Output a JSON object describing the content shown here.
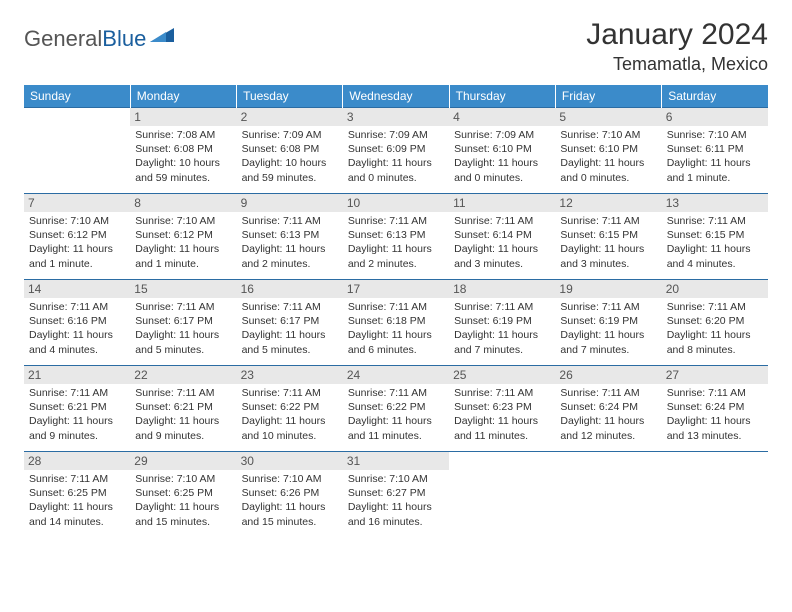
{
  "logo": {
    "part1": "General",
    "part2": "Blue"
  },
  "title": "January 2024",
  "location": "Temamatla, Mexico",
  "colors": {
    "header_bg": "#3b8bca",
    "header_text": "#ffffff",
    "row_border": "#2b6ca3",
    "daynum_bg": "#e8e8e8",
    "daynum_text": "#555555",
    "body_text": "#333333",
    "logo_blue": "#1b5f9e",
    "logo_gray": "#555555"
  },
  "weekdays": [
    "Sunday",
    "Monday",
    "Tuesday",
    "Wednesday",
    "Thursday",
    "Friday",
    "Saturday"
  ],
  "weeks": [
    [
      {
        "n": "",
        "sr": "",
        "ss": "",
        "dl": ""
      },
      {
        "n": "1",
        "sr": "Sunrise: 7:08 AM",
        "ss": "Sunset: 6:08 PM",
        "dl": "Daylight: 10 hours and 59 minutes."
      },
      {
        "n": "2",
        "sr": "Sunrise: 7:09 AM",
        "ss": "Sunset: 6:08 PM",
        "dl": "Daylight: 10 hours and 59 minutes."
      },
      {
        "n": "3",
        "sr": "Sunrise: 7:09 AM",
        "ss": "Sunset: 6:09 PM",
        "dl": "Daylight: 11 hours and 0 minutes."
      },
      {
        "n": "4",
        "sr": "Sunrise: 7:09 AM",
        "ss": "Sunset: 6:10 PM",
        "dl": "Daylight: 11 hours and 0 minutes."
      },
      {
        "n": "5",
        "sr": "Sunrise: 7:10 AM",
        "ss": "Sunset: 6:10 PM",
        "dl": "Daylight: 11 hours and 0 minutes."
      },
      {
        "n": "6",
        "sr": "Sunrise: 7:10 AM",
        "ss": "Sunset: 6:11 PM",
        "dl": "Daylight: 11 hours and 1 minute."
      }
    ],
    [
      {
        "n": "7",
        "sr": "Sunrise: 7:10 AM",
        "ss": "Sunset: 6:12 PM",
        "dl": "Daylight: 11 hours and 1 minute."
      },
      {
        "n": "8",
        "sr": "Sunrise: 7:10 AM",
        "ss": "Sunset: 6:12 PM",
        "dl": "Daylight: 11 hours and 1 minute."
      },
      {
        "n": "9",
        "sr": "Sunrise: 7:11 AM",
        "ss": "Sunset: 6:13 PM",
        "dl": "Daylight: 11 hours and 2 minutes."
      },
      {
        "n": "10",
        "sr": "Sunrise: 7:11 AM",
        "ss": "Sunset: 6:13 PM",
        "dl": "Daylight: 11 hours and 2 minutes."
      },
      {
        "n": "11",
        "sr": "Sunrise: 7:11 AM",
        "ss": "Sunset: 6:14 PM",
        "dl": "Daylight: 11 hours and 3 minutes."
      },
      {
        "n": "12",
        "sr": "Sunrise: 7:11 AM",
        "ss": "Sunset: 6:15 PM",
        "dl": "Daylight: 11 hours and 3 minutes."
      },
      {
        "n": "13",
        "sr": "Sunrise: 7:11 AM",
        "ss": "Sunset: 6:15 PM",
        "dl": "Daylight: 11 hours and 4 minutes."
      }
    ],
    [
      {
        "n": "14",
        "sr": "Sunrise: 7:11 AM",
        "ss": "Sunset: 6:16 PM",
        "dl": "Daylight: 11 hours and 4 minutes."
      },
      {
        "n": "15",
        "sr": "Sunrise: 7:11 AM",
        "ss": "Sunset: 6:17 PM",
        "dl": "Daylight: 11 hours and 5 minutes."
      },
      {
        "n": "16",
        "sr": "Sunrise: 7:11 AM",
        "ss": "Sunset: 6:17 PM",
        "dl": "Daylight: 11 hours and 5 minutes."
      },
      {
        "n": "17",
        "sr": "Sunrise: 7:11 AM",
        "ss": "Sunset: 6:18 PM",
        "dl": "Daylight: 11 hours and 6 minutes."
      },
      {
        "n": "18",
        "sr": "Sunrise: 7:11 AM",
        "ss": "Sunset: 6:19 PM",
        "dl": "Daylight: 11 hours and 7 minutes."
      },
      {
        "n": "19",
        "sr": "Sunrise: 7:11 AM",
        "ss": "Sunset: 6:19 PM",
        "dl": "Daylight: 11 hours and 7 minutes."
      },
      {
        "n": "20",
        "sr": "Sunrise: 7:11 AM",
        "ss": "Sunset: 6:20 PM",
        "dl": "Daylight: 11 hours and 8 minutes."
      }
    ],
    [
      {
        "n": "21",
        "sr": "Sunrise: 7:11 AM",
        "ss": "Sunset: 6:21 PM",
        "dl": "Daylight: 11 hours and 9 minutes."
      },
      {
        "n": "22",
        "sr": "Sunrise: 7:11 AM",
        "ss": "Sunset: 6:21 PM",
        "dl": "Daylight: 11 hours and 9 minutes."
      },
      {
        "n": "23",
        "sr": "Sunrise: 7:11 AM",
        "ss": "Sunset: 6:22 PM",
        "dl": "Daylight: 11 hours and 10 minutes."
      },
      {
        "n": "24",
        "sr": "Sunrise: 7:11 AM",
        "ss": "Sunset: 6:22 PM",
        "dl": "Daylight: 11 hours and 11 minutes."
      },
      {
        "n": "25",
        "sr": "Sunrise: 7:11 AM",
        "ss": "Sunset: 6:23 PM",
        "dl": "Daylight: 11 hours and 11 minutes."
      },
      {
        "n": "26",
        "sr": "Sunrise: 7:11 AM",
        "ss": "Sunset: 6:24 PM",
        "dl": "Daylight: 11 hours and 12 minutes."
      },
      {
        "n": "27",
        "sr": "Sunrise: 7:11 AM",
        "ss": "Sunset: 6:24 PM",
        "dl": "Daylight: 11 hours and 13 minutes."
      }
    ],
    [
      {
        "n": "28",
        "sr": "Sunrise: 7:11 AM",
        "ss": "Sunset: 6:25 PM",
        "dl": "Daylight: 11 hours and 14 minutes."
      },
      {
        "n": "29",
        "sr": "Sunrise: 7:10 AM",
        "ss": "Sunset: 6:25 PM",
        "dl": "Daylight: 11 hours and 15 minutes."
      },
      {
        "n": "30",
        "sr": "Sunrise: 7:10 AM",
        "ss": "Sunset: 6:26 PM",
        "dl": "Daylight: 11 hours and 15 minutes."
      },
      {
        "n": "31",
        "sr": "Sunrise: 7:10 AM",
        "ss": "Sunset: 6:27 PM",
        "dl": "Daylight: 11 hours and 16 minutes."
      },
      {
        "n": "",
        "sr": "",
        "ss": "",
        "dl": ""
      },
      {
        "n": "",
        "sr": "",
        "ss": "",
        "dl": ""
      },
      {
        "n": "",
        "sr": "",
        "ss": "",
        "dl": ""
      }
    ]
  ]
}
